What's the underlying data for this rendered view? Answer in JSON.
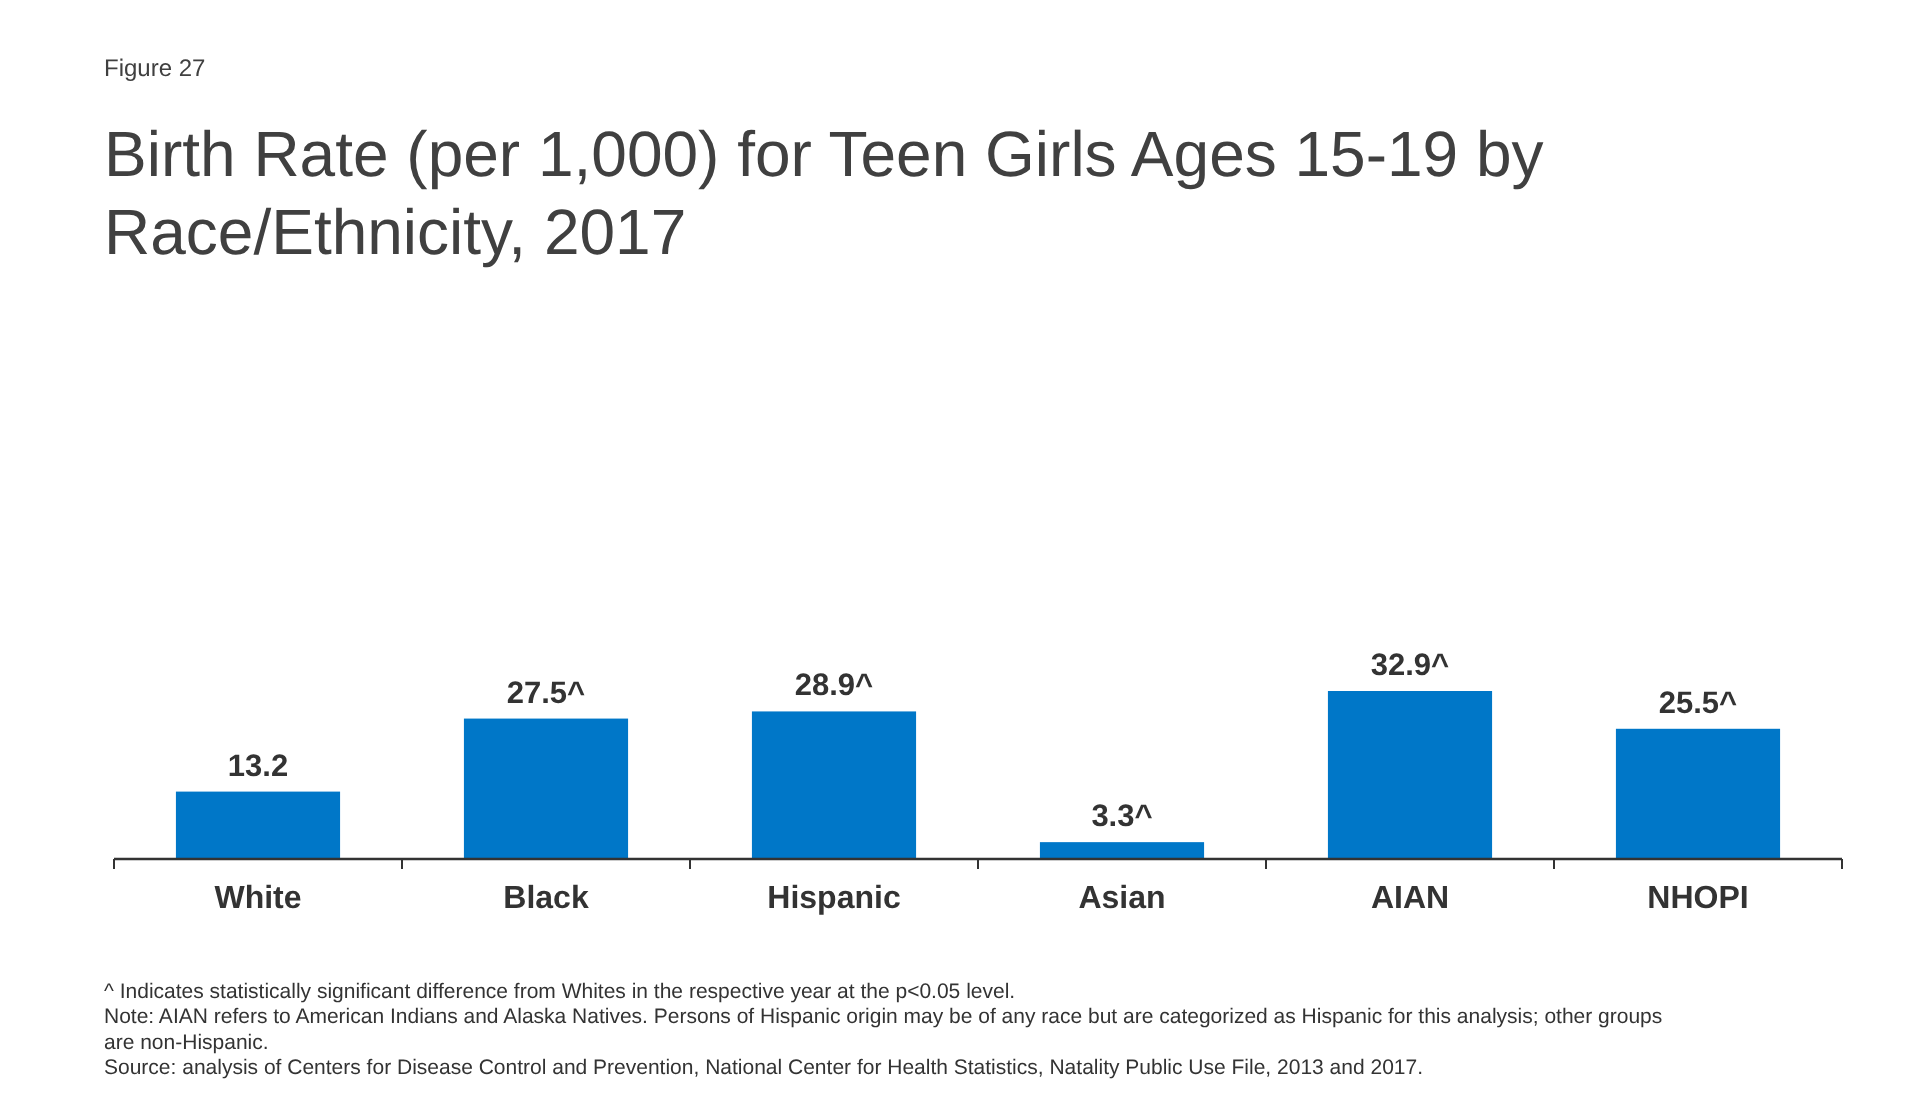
{
  "chart_data": {
    "type": "bar",
    "title": "Birth Rate (per 1,000) for Teen Girls Ages 15-19 by Race/Ethnicity, 2017",
    "categories": [
      "White",
      "Black",
      "Hispanic",
      "Asian",
      "AIAN",
      "NHOPI"
    ],
    "values": [
      13.2,
      27.5,
      28.9,
      3.3,
      32.9,
      25.5
    ],
    "value_labels": [
      "13.2",
      "27.5^",
      "28.9^",
      "3.3^",
      "32.9^",
      "25.5^"
    ],
    "color": "#0077c8",
    "annotations": [
      "Figure 27",
      "^ Indicates statistically significant difference from Whites in the respective year at the p<0.05 level.",
      "Note: AIAN refers to American Indians and Alaska Natives. Persons of Hispanic origin may be of any race but are categorized as Hispanic for this analysis; other groups are non-Hispanic.",
      "Source: analysis of Centers for Disease Control and Prevention, National Center for Health Statistics, Natality Public Use File, 2013 and 2017."
    ]
  }
}
